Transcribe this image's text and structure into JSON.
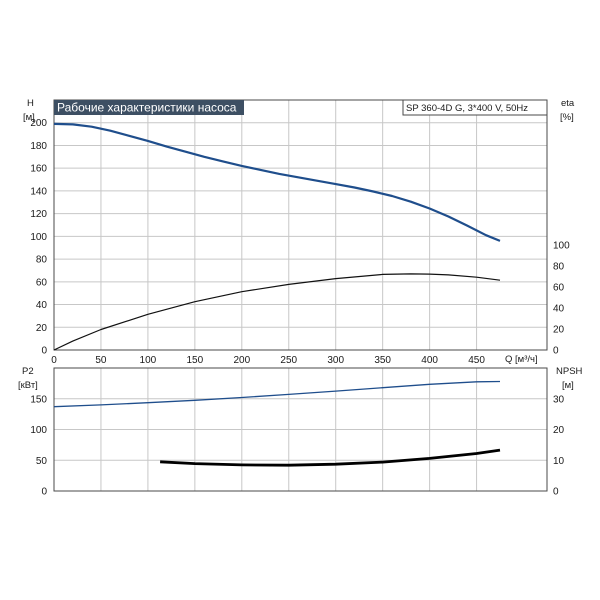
{
  "title_left": "Рабочие характеристики насоса",
  "title_right": "SP 360-4D G, 3*400 V, 50Hz",
  "colors": {
    "title_bg": "#3d4f63",
    "curve_head": "#1f4e8c",
    "curve_p2": "#1f4e8c",
    "curve_eta": "#111111",
    "curve_npsh": "#000000"
  },
  "chart_data": [
    {
      "type": "line",
      "title": "Рабочие характеристики насоса",
      "subtitle": "SP 360-4D G, 3*400 V, 50Hz",
      "xlabel": "Q [м³/ч]",
      "ylabel": "H\n[м]",
      "y2label": "eta\n[%]",
      "x_ticks": [
        0,
        50,
        100,
        150,
        200,
        250,
        300,
        350,
        400,
        450
      ],
      "y_ticks": [
        0,
        20,
        40,
        60,
        80,
        100,
        120,
        140,
        160,
        180,
        200
      ],
      "y2_ticks": [
        0,
        20,
        40,
        60,
        80,
        100
      ],
      "xlim": [
        0,
        525
      ],
      "ylim": [
        0,
        220
      ],
      "y2lim": [
        0,
        100
      ],
      "grid": true,
      "series": [
        {
          "axis": "left",
          "x": [
            0,
            20,
            40,
            60,
            80,
            100,
            120,
            140,
            160,
            180,
            200,
            220,
            240,
            260,
            280,
            300,
            320,
            340,
            360,
            380,
            400,
            420,
            440,
            460,
            475
          ],
          "values": [
            199,
            198.5,
            196.5,
            193,
            188.5,
            184,
            179,
            174.5,
            170,
            166,
            162,
            158.5,
            155,
            152,
            149,
            146,
            143,
            139.5,
            135.5,
            130.5,
            124.5,
            117.5,
            109.5,
            101,
            96
          ]
        },
        {
          "axis": "right",
          "x": [
            0,
            20,
            50,
            100,
            150,
            200,
            250,
            300,
            350,
            380,
            400,
            420,
            450,
            475
          ],
          "values": [
            0,
            8.5,
            19.5,
            34,
            46,
            55.5,
            62.5,
            68,
            72,
            72.5,
            72.3,
            71.5,
            69.3,
            66.5
          ]
        }
      ]
    },
    {
      "type": "line",
      "ylabel": "P2\n[кВт]",
      "y2label": "NPSH\n[м]",
      "y_ticks": [
        0,
        50,
        100,
        150
      ],
      "y2_ticks": [
        0,
        10,
        20,
        30
      ],
      "xlim": [
        0,
        525
      ],
      "ylim": [
        0,
        200
      ],
      "y2lim": [
        0,
        40
      ],
      "grid": true,
      "series": [
        {
          "axis": "left",
          "x": [
            0,
            50,
            100,
            150,
            200,
            250,
            300,
            350,
            400,
            450,
            475
          ],
          "values": [
            137,
            140,
            143.5,
            147.5,
            152,
            157,
            162.5,
            168,
            173.5,
            177.5,
            178
          ]
        },
        {
          "axis": "right",
          "x": [
            113,
            150,
            200,
            250,
            300,
            350,
            400,
            450,
            475
          ],
          "values": [
            9.5,
            8.9,
            8.5,
            8.4,
            8.7,
            9.4,
            10.6,
            12.2,
            13.3
          ]
        }
      ]
    }
  ]
}
